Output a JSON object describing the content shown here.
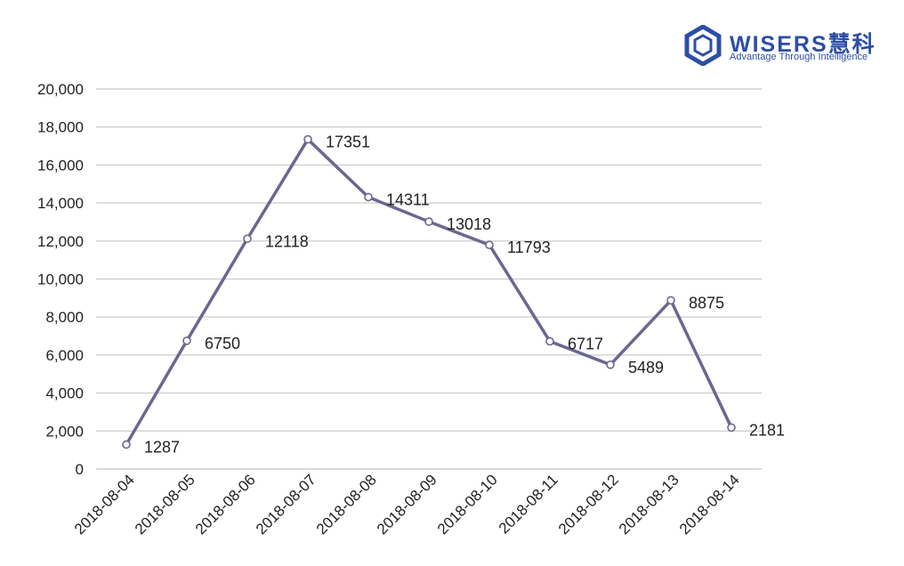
{
  "brand": {
    "name": "WISERS慧科",
    "tagline": "Advantage Through Intelligence",
    "color": "#2b4ea6",
    "icon": "hexagon-logo-icon"
  },
  "colors": {
    "line": "#6a6890",
    "marker_fill": "#ffffff",
    "grid": "#d0d0d0",
    "text": "#222222"
  },
  "chart_data": {
    "type": "line",
    "categories": [
      "2018-08-04",
      "2018-08-05",
      "2018-08-06",
      "2018-08-07",
      "2018-08-08",
      "2018-08-09",
      "2018-08-10",
      "2018-08-11",
      "2018-08-12",
      "2018-08-13",
      "2018-08-14"
    ],
    "values": [
      1287,
      6750,
      12118,
      17351,
      14311,
      13018,
      11793,
      6717,
      5489,
      8875,
      2181
    ],
    "data_labels": [
      "1287",
      "6750",
      "12118",
      "17351",
      "14311",
      "13018",
      "11793",
      "6717",
      "5489",
      "8875",
      "2181"
    ],
    "ylim": [
      0,
      20000
    ],
    "yticks": [
      0,
      2000,
      4000,
      6000,
      8000,
      10000,
      12000,
      14000,
      16000,
      18000,
      20000
    ],
    "ytick_labels": [
      "0",
      "2,000",
      "4,000",
      "6,000",
      "8,000",
      "10,000",
      "12,000",
      "14,000",
      "16,000",
      "18,000",
      "20,000"
    ],
    "grid": true,
    "legend": "none",
    "title": "",
    "xlabel": "",
    "ylabel": ""
  }
}
